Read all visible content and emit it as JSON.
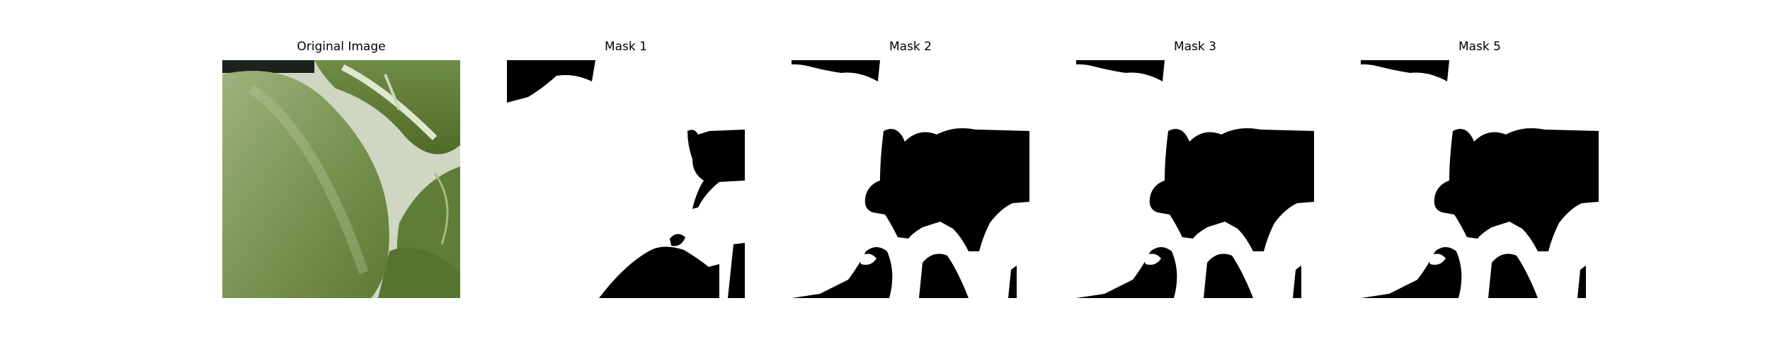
{
  "figure": {
    "panels": [
      {
        "title": "Original Image",
        "kind": "photo"
      },
      {
        "title": "Mask 1",
        "kind": "mask"
      },
      {
        "title": "Mask 2",
        "kind": "mask"
      },
      {
        "title": "Mask 3",
        "kind": "mask"
      },
      {
        "title": "Mask 5",
        "kind": "mask"
      }
    ]
  },
  "colors": {
    "background": "#ffffff",
    "mask_foreground": "#ffffff",
    "mask_background": "#000000",
    "leaf_dark": "#4f6a2c",
    "leaf_mid": "#7e9a55",
    "leaf_light": "#a8bd84"
  }
}
